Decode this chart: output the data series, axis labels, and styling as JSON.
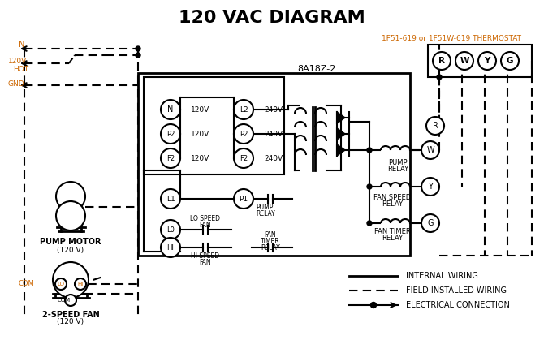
{
  "title": "120 VAC DIAGRAM",
  "title_fontsize": 16,
  "title_color": "#000000",
  "bg_color": "#ffffff",
  "line_color": "#000000",
  "orange_color": "#cc6600",
  "thermostat_label": "1F51-619 or 1F51W-619 THERMOSTAT",
  "control_box_label": "8A18Z-2",
  "legend_items": [
    {
      "label": "INTERNAL WIRING",
      "style": "solid"
    },
    {
      "label": "FIELD INSTALLED WIRING",
      "style": "dashed"
    },
    {
      "label": "ELECTRICAL CONNECTION",
      "style": "dot_arrow"
    }
  ]
}
